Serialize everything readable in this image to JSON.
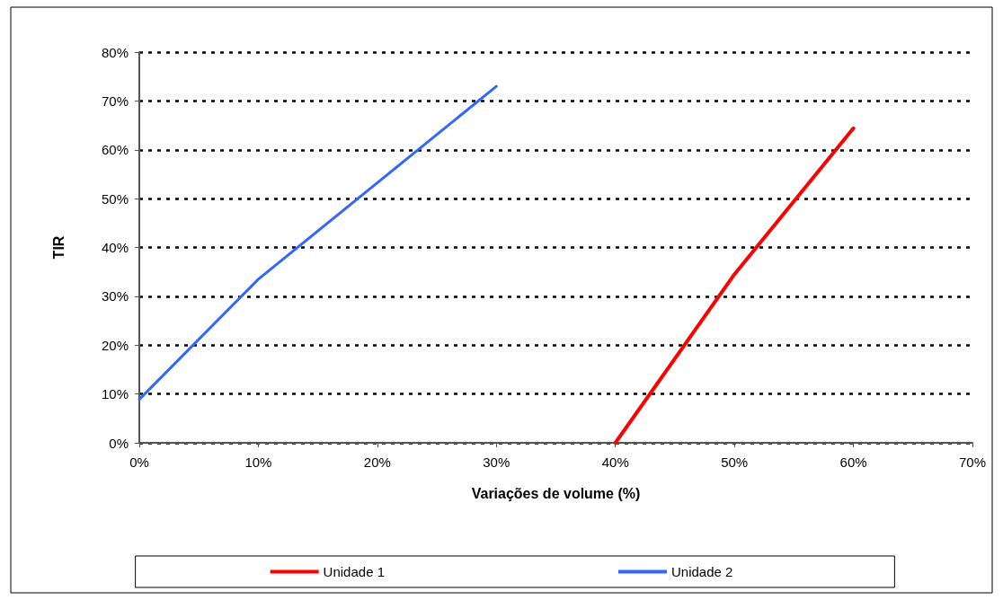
{
  "chart_data": {
    "type": "line",
    "xlabel": "Variações de volume (%)",
    "ylabel": "TIR",
    "xlim": [
      0,
      70
    ],
    "xticks": [
      {
        "value": 0,
        "label": "0%"
      },
      {
        "value": 10,
        "label": "10%"
      },
      {
        "value": 20,
        "label": "20%"
      },
      {
        "value": 30,
        "label": "30%"
      },
      {
        "value": 40,
        "label": "40%"
      },
      {
        "value": 50,
        "label": "50%"
      },
      {
        "value": 60,
        "label": "60%"
      },
      {
        "value": 70,
        "label": "70%"
      }
    ],
    "ylim": [
      0,
      80
    ],
    "yticks": [
      {
        "value": 0,
        "label": "0%"
      },
      {
        "value": 10,
        "label": "10%"
      },
      {
        "value": 20,
        "label": "20%"
      },
      {
        "value": 30,
        "label": "30%"
      },
      {
        "value": 40,
        "label": "40%"
      },
      {
        "value": 50,
        "label": "50%"
      },
      {
        "value": 60,
        "label": "60%"
      },
      {
        "value": 70,
        "label": "70%"
      },
      {
        "value": 80,
        "label": "80%"
      }
    ],
    "series": [
      {
        "name": "Unidade 1",
        "color": "#ff0000",
        "x": [
          40,
          50,
          60
        ],
        "values": [
          0,
          34.5,
          64.4
        ]
      },
      {
        "name": "Unidade 2",
        "color": "#3366ff",
        "x": [
          0,
          10,
          30
        ],
        "values": [
          8.9,
          33.5,
          73
        ]
      }
    ],
    "grid": "y",
    "legend": "bottom",
    "marker": "none",
    "line_style": "solid"
  }
}
